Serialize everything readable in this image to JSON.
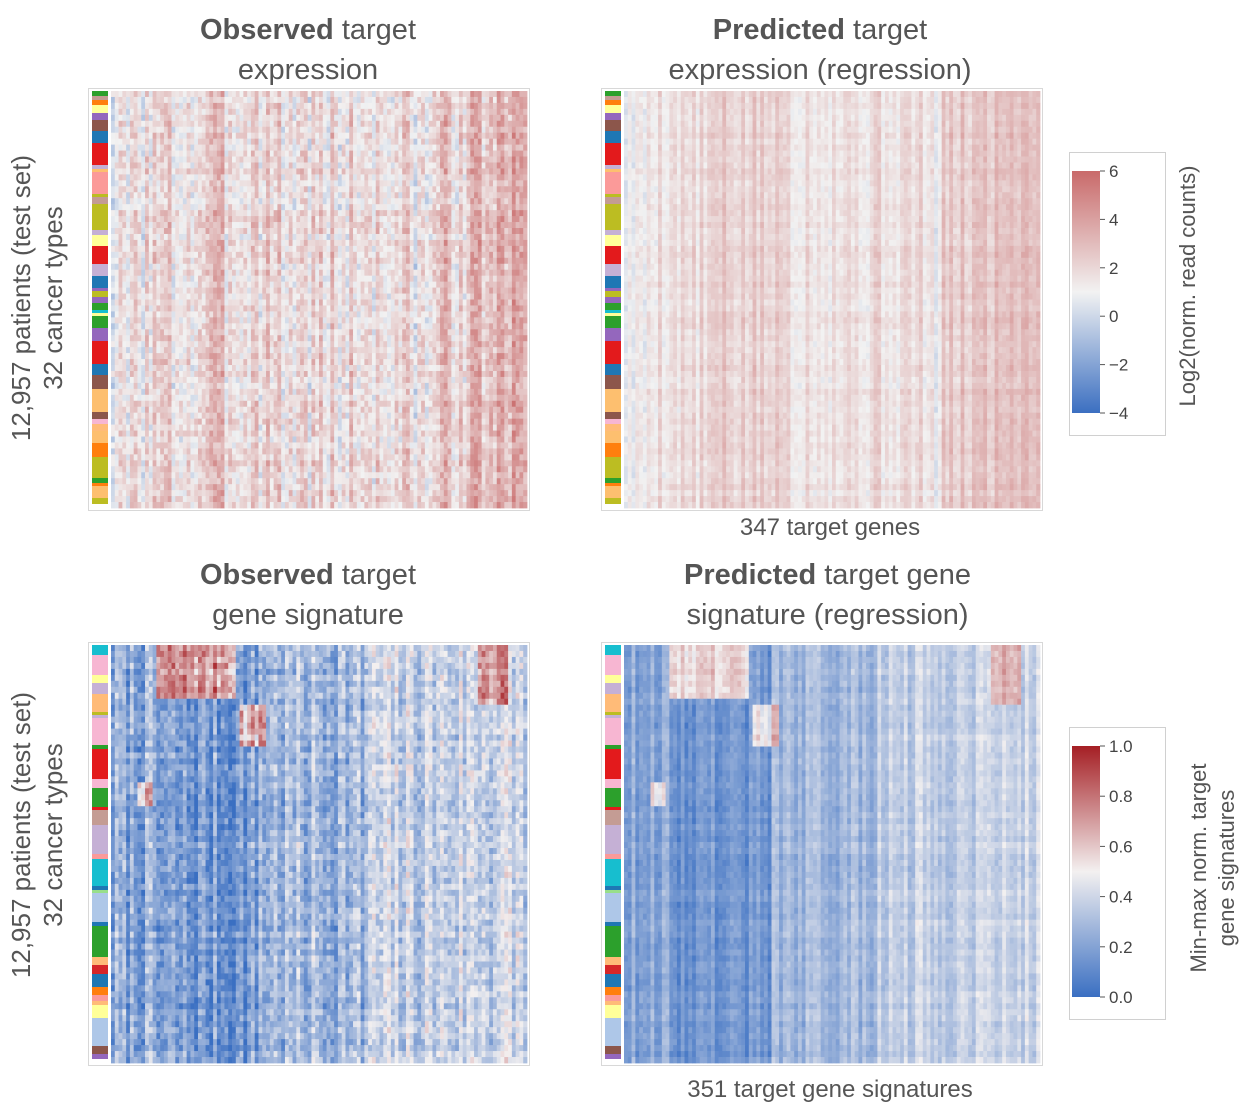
{
  "figure": {
    "rows": [
      {
        "ylabel_line1": "12,957  patients (test set)",
        "ylabel_line2": "32 cancer types",
        "xlabel": "347 target genes",
        "colorbar": {
          "label": "Log2(norm. read counts)",
          "ticks": [
            "6",
            "4",
            "2",
            "0",
            "−2",
            "−4"
          ],
          "low_color": "#3b6fc1",
          "mid_color": "#f2f2f2",
          "high_color": "#c96a6a"
        },
        "panels": [
          {
            "title_bold": "Observed",
            "title_rest": " target",
            "title_line2": "expression"
          },
          {
            "title_bold": "Predicted",
            "title_rest": " target",
            "title_line2": "expression (regression)"
          }
        ]
      },
      {
        "ylabel_line1": "12,957  patients (test set)",
        "ylabel_line2": "32 cancer types",
        "xlabel": "351 target gene signatures",
        "colorbar": {
          "label_line1": "Min-max norm. target",
          "label_line2": "gene signatures",
          "ticks": [
            "1.0",
            "0.8",
            "0.6",
            "0.4",
            "0.2",
            "0.0"
          ],
          "low_color": "#3a6fc2",
          "mid_color": "#f3f0f0",
          "high_color": "#a51f24"
        },
        "panels": [
          {
            "title_bold": "Observed",
            "title_rest": " target",
            "title_line2": "gene signature"
          },
          {
            "title_bold": "Predicted",
            "title_rest": " target gene",
            "title_line2": "signature (regression)"
          }
        ]
      }
    ]
  },
  "chart_data": [
    {
      "type": "heatmap",
      "title": "Observed target expression",
      "ylabel": "12,957  patients (test set) 32 cancer types",
      "rows": 12957,
      "cols": 347,
      "zlim": [
        -4,
        6
      ],
      "colorbar_label": "Log2(norm. read counts)"
    },
    {
      "type": "heatmap",
      "title": "Predicted target expression (regression)",
      "xlabel": "347 target genes",
      "rows": 12957,
      "cols": 347,
      "zlim": [
        -4,
        6
      ],
      "colorbar_label": "Log2(norm. read counts)"
    },
    {
      "type": "heatmap",
      "title": "Observed target gene signature",
      "ylabel": "12,957  patients (test set) 32 cancer types",
      "rows": 12957,
      "cols": 351,
      "zlim": [
        0.0,
        1.0
      ],
      "colorbar_label": "Min-max norm. target gene signatures"
    },
    {
      "type": "heatmap",
      "title": "Predicted target gene signature (regression)",
      "xlabel": "351 target gene signatures",
      "rows": 12957,
      "cols": 351,
      "zlim": [
        0.0,
        1.0
      ],
      "colorbar_label": "Min-max norm. target gene signatures"
    }
  ],
  "cancer_type_palette": [
    "#e31a1c",
    "#ff7f0e",
    "#1f77b4",
    "#aec7e8",
    "#ffff99",
    "#f7b6d2",
    "#2ca02c",
    "#98df8a",
    "#8c564b",
    "#9467bd",
    "#c5b0d5",
    "#ffbb78",
    "#17becf",
    "#bcbd22",
    "#d62728",
    "#c49c94",
    "#fdbf6f",
    "#fb9a99"
  ]
}
